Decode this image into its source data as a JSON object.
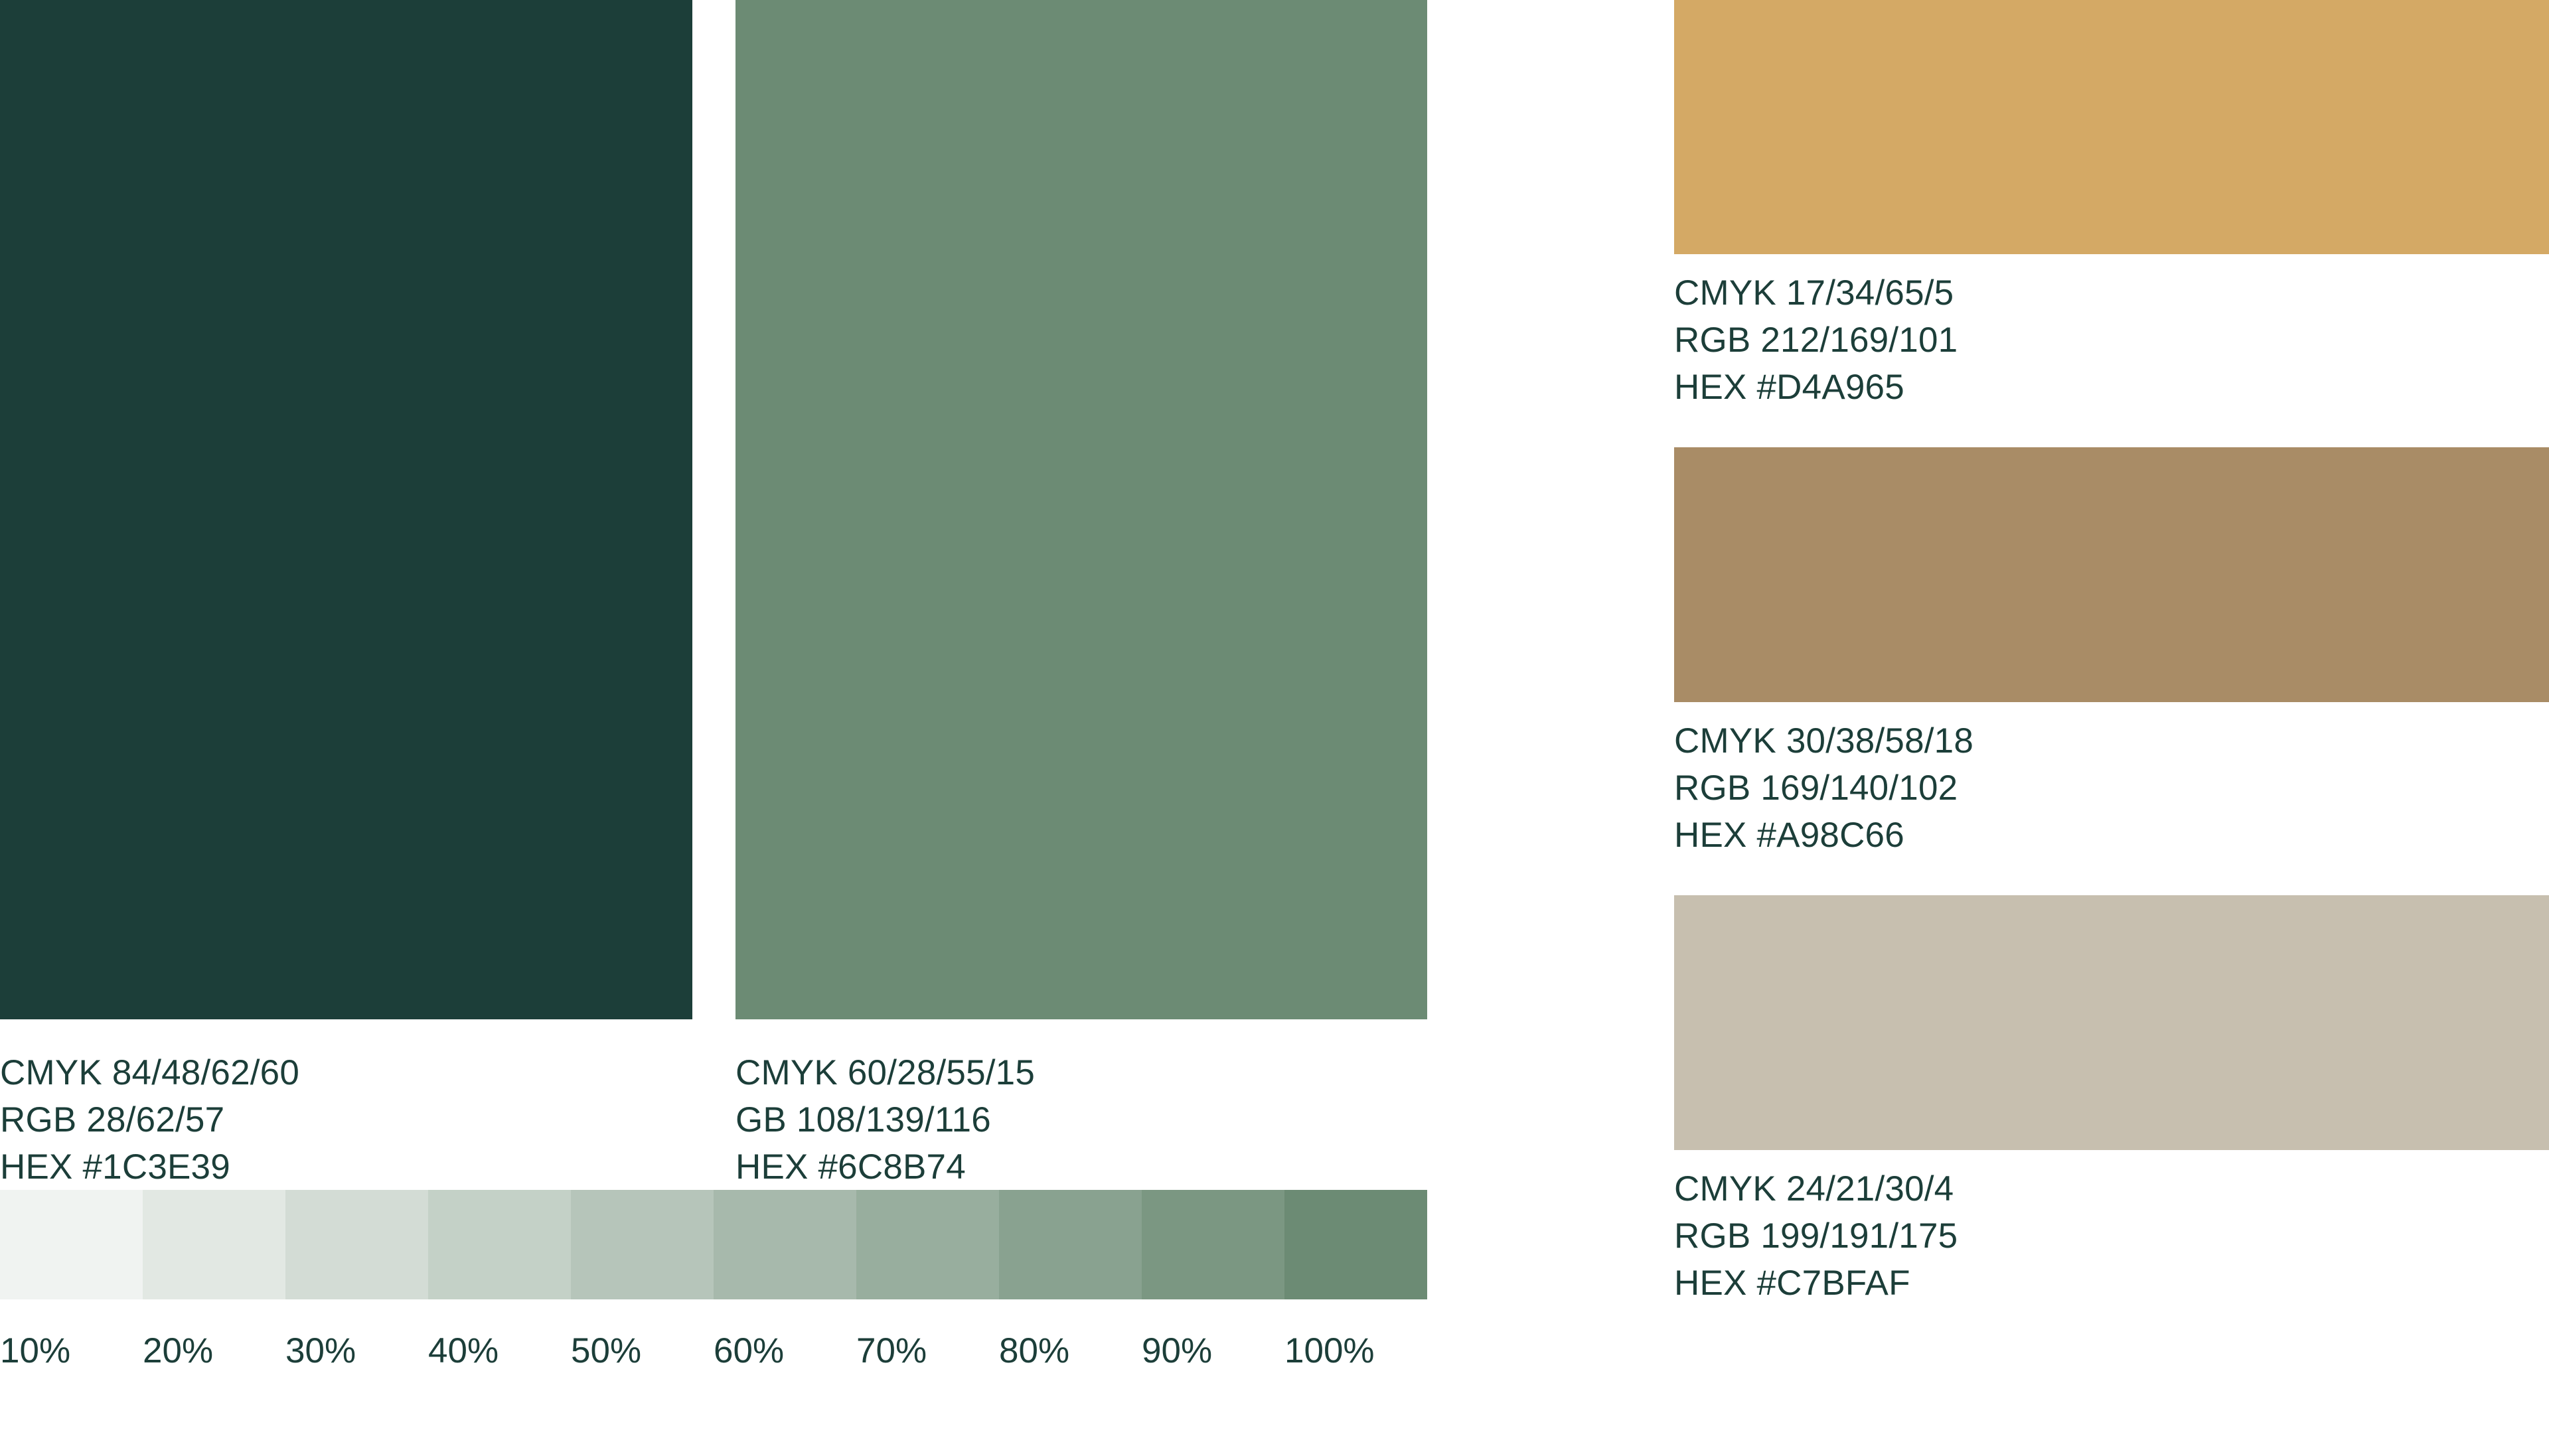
{
  "swatches": {
    "dark_green": {
      "color": "#1C3E39",
      "cmyk": "CMYK 84/48/62/60",
      "rgb": "RGB 28/62/57",
      "hex": "HEX #1C3E39"
    },
    "sage": {
      "color": "#6C8B74",
      "cmyk": "CMYK 60/28/55/15",
      "rgb": "GB 108/139/116",
      "hex": "HEX #6C8B74"
    },
    "gold": {
      "color": "#D4A965",
      "cmyk": "CMYK 17/34/65/5",
      "rgb": "RGB 212/169/101",
      "hex": "HEX #D4A965"
    },
    "tan": {
      "color": "#A98C66",
      "cmyk": "CMYK 30/38/58/18",
      "rgb": "RGB 169/140/102",
      "hex": "HEX #A98C66"
    },
    "beige": {
      "color": "#C7BFAF",
      "cmyk": "CMYK 24/21/30/4",
      "rgb": "RGB 199/191/175",
      "hex": "HEX #C7BFAF"
    }
  },
  "tint_scale": {
    "base_color": "#6C8B74",
    "steps": [
      {
        "label": "10%",
        "level": 0.1
      },
      {
        "label": "20%",
        "level": 0.2
      },
      {
        "label": "30%",
        "level": 0.3
      },
      {
        "label": "40%",
        "level": 0.4
      },
      {
        "label": "50%",
        "level": 0.5
      },
      {
        "label": "60%",
        "level": 0.6
      },
      {
        "label": "70%",
        "level": 0.7
      },
      {
        "label": "80%",
        "level": 0.8
      },
      {
        "label": "90%",
        "level": 0.9
      },
      {
        "label": "100%",
        "level": 1.0
      }
    ]
  }
}
